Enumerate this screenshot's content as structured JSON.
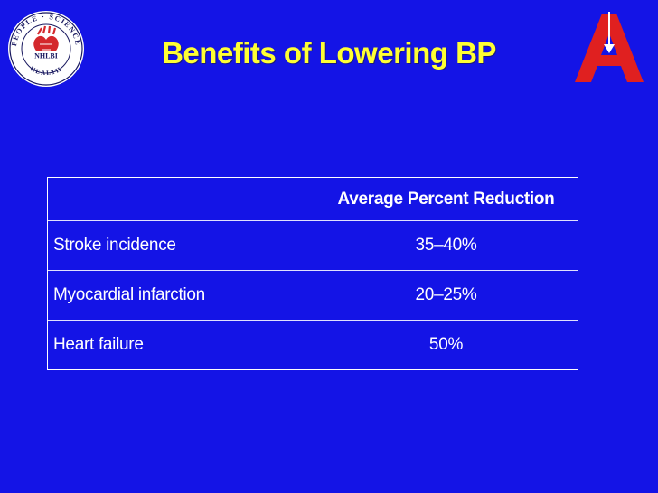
{
  "slide": {
    "title": "Benefits of Lowering BP",
    "background_color": "#1414e6",
    "title_color": "#ffff33"
  },
  "logos": {
    "left": {
      "icon": "nhlbi-seal-icon",
      "ring_text_top": "PEOPLE · SCIENCE",
      "ring_text_bottom": "HEALTH",
      "center_text": "NHLBI"
    },
    "right": {
      "icon": "american-heart-association-icon"
    }
  },
  "table": {
    "header": {
      "label": "",
      "value": "Average Percent Reduction"
    },
    "rows": [
      {
        "label": "Stroke incidence",
        "value": "35–40%"
      },
      {
        "label": "Myocardial infarction",
        "value": "20–25%"
      },
      {
        "label": "Heart failure",
        "value": "50%"
      }
    ]
  }
}
